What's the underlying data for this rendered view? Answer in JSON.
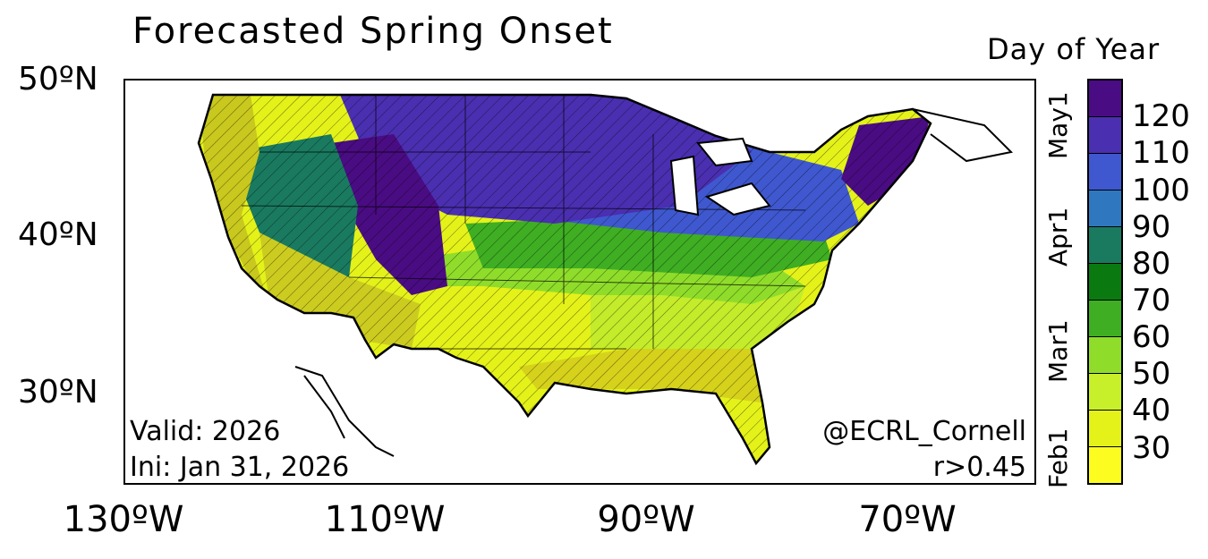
{
  "title": "Forecasted Spring Onset",
  "colorbar": {
    "title": "Day of Year",
    "labels": [
      "120",
      "110",
      "100",
      "90",
      "80",
      "70",
      "60",
      "50",
      "40",
      "30"
    ],
    "colors": [
      "#4a0c82",
      "#4a2fb0",
      "#3f58cf",
      "#2f78c0",
      "#1a7a60",
      "#0a7a10",
      "#3fae23",
      "#8fdd2a",
      "#c8f02a",
      "#e4f21a",
      "#fcfc20"
    ],
    "months": [
      "May1",
      "Apr1",
      "Mar1",
      "Feb1"
    ]
  },
  "axes": {
    "lat_labels": [
      "50ºN",
      "40ºN",
      "30ºN"
    ],
    "lon_labels": [
      "130ºW",
      "110ºW",
      "90ºW",
      "70ºW"
    ]
  },
  "annotations": {
    "valid": "Valid: 2026",
    "init": "Ini: Jan 31, 2026",
    "credit": "@ECRL_Cornell",
    "threshold": "r>0.45"
  },
  "map_colors": {
    "ocean": "#ffffff",
    "pacific_coast": "#c8c81e",
    "southwest": "#cccc20",
    "south": "#e4f21a",
    "gulf": "#d6d21c",
    "southeast": "#c4ec2a",
    "central_plains": "#8fdd2a",
    "midatlantic": "#3fae23",
    "north_plains": "#4a2fb0",
    "rockies": "#4a0c82",
    "great_basin": "#1a7a60",
    "northeast": "#3f58cf",
    "new_england": "#4a0c82",
    "great_lakes_water": "#ffffff"
  }
}
